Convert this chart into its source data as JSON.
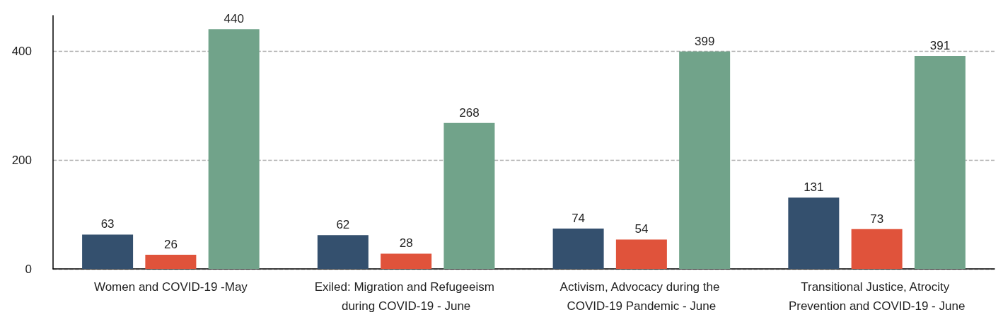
{
  "chart_data": {
    "type": "bar",
    "categories": [
      "Women and COVID-19 -May",
      "Exiled: Migration and Refugeeism during COVID-19 - June",
      "Activism, Advocacy during the COVID-19 Pandemic - June",
      "Transitional Justice, Atrocity Prevention and COVID-19 - June"
    ],
    "series": [
      {
        "color": "#34506e",
        "values": [
          63,
          62,
          74,
          131
        ]
      },
      {
        "color": "#e0533b",
        "values": [
          26,
          28,
          54,
          73
        ]
      },
      {
        "color": "#71a38a",
        "values": [
          440,
          268,
          399,
          391
        ]
      }
    ],
    "ylim": [
      0,
      465
    ],
    "yticks": [
      0,
      200,
      400
    ],
    "grid": "y",
    "data_labels": true
  }
}
